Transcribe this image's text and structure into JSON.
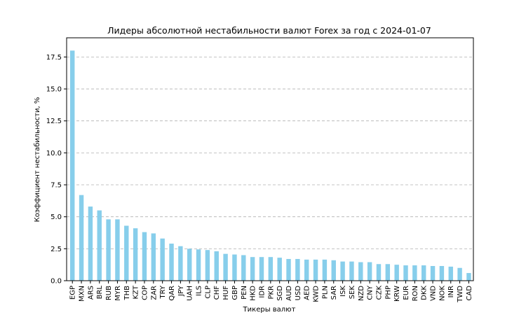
{
  "chart_data": {
    "type": "bar",
    "title": "Лидеры абсолютной нестабильности валют Forex за год с 2024-01-07",
    "xlabel": "Тикеры валют",
    "ylabel": "Коэффициент нестабильности, %",
    "ylim": [
      0,
      19
    ],
    "yticks": [
      "0.0",
      "2.5",
      "5.0",
      "7.5",
      "10.0",
      "12.5",
      "15.0",
      "17.5"
    ],
    "grid": "y-dashed",
    "bar_color": "#87CEEB",
    "categories": [
      "EGP",
      "MXN",
      "ARS",
      "BRL",
      "RUB",
      "MYR",
      "THB",
      "KZT",
      "COP",
      "ZAR",
      "TRY",
      "QAR",
      "JPY",
      "UAH",
      "ILS",
      "CLP",
      "CHF",
      "HUF",
      "GBP",
      "PEN",
      "HKD",
      "IDR",
      "PKR",
      "SGD",
      "AUD",
      "USD",
      "AED",
      "KWD",
      "PLN",
      "SAR",
      "ISK",
      "SEK",
      "NZD",
      "CNY",
      "CZK",
      "PHP",
      "KRW",
      "EUR",
      "RON",
      "DKK",
      "VND",
      "NOK",
      "INR",
      "TWD",
      "CAD"
    ],
    "values": [
      18.0,
      6.7,
      5.8,
      5.5,
      4.8,
      4.8,
      4.3,
      4.1,
      3.8,
      3.7,
      3.3,
      2.9,
      2.7,
      2.5,
      2.45,
      2.4,
      2.3,
      2.1,
      2.05,
      2.0,
      1.85,
      1.85,
      1.85,
      1.8,
      1.7,
      1.7,
      1.65,
      1.65,
      1.65,
      1.6,
      1.5,
      1.5,
      1.45,
      1.45,
      1.3,
      1.3,
      1.25,
      1.2,
      1.2,
      1.2,
      1.15,
      1.15,
      1.1,
      1.0,
      0.6
    ]
  }
}
